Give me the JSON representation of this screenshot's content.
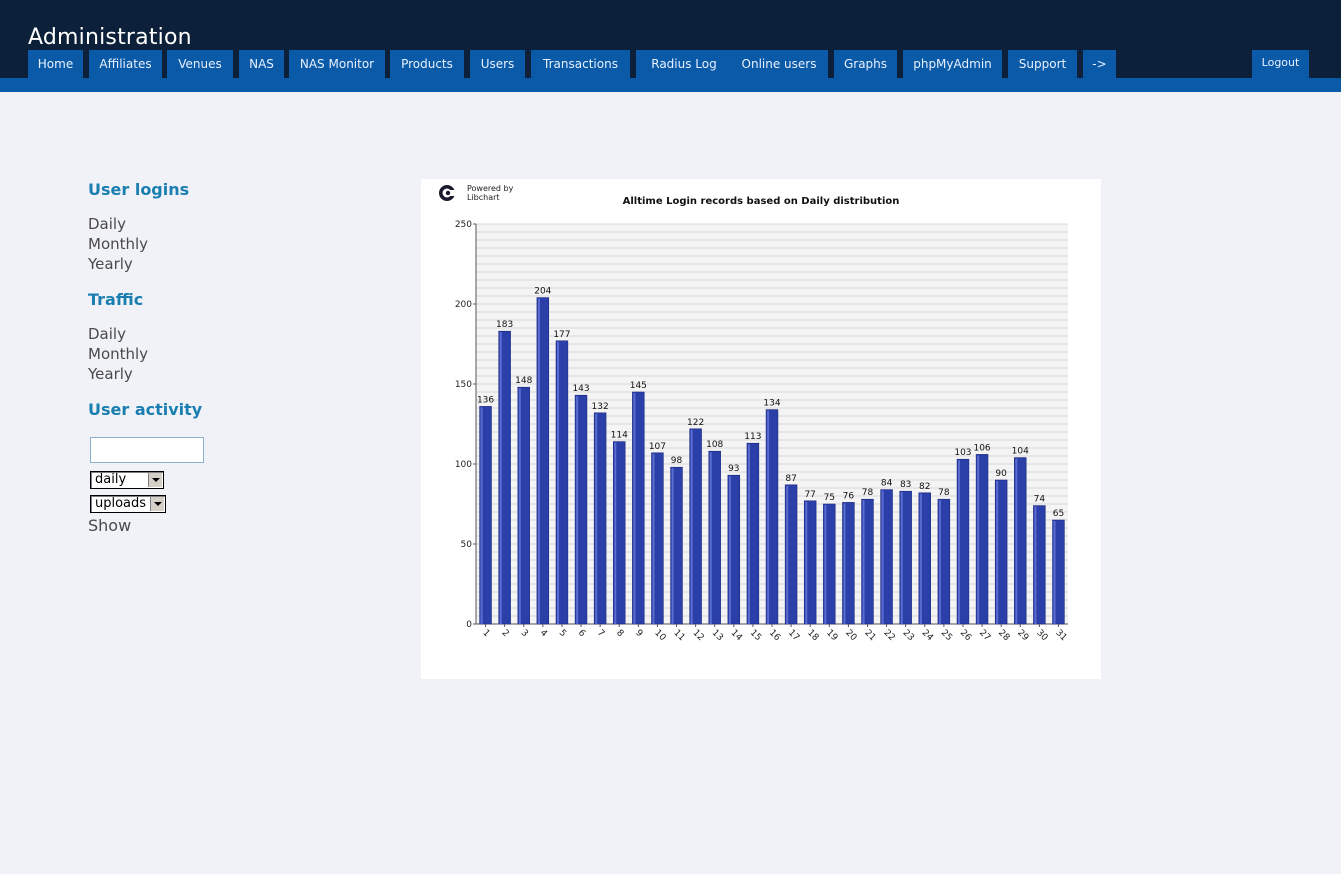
{
  "header": {
    "title": "Administration",
    "tabs": [
      "Home",
      "Affiliates",
      "Venues",
      "NAS",
      "NAS Monitor",
      "Products",
      "Users",
      "Transactions",
      "Radius Log",
      "Online users",
      "Graphs",
      "phpMyAdmin",
      "Support",
      "->"
    ],
    "logout_label": "Logout"
  },
  "sidebar": {
    "user_logins": {
      "title": "User logins",
      "links": [
        "Daily",
        "Monthly",
        "Yearly"
      ]
    },
    "traffic": {
      "title": "Traffic",
      "links": [
        "Daily",
        "Monthly",
        "Yearly"
      ]
    },
    "user_activity": {
      "title": "User activity",
      "username_value": "",
      "period_select": "daily",
      "type_select": "uploads",
      "show_label": "Show"
    }
  },
  "chart_header": {
    "powered_by_line1": "Powered by",
    "powered_by_line2": "Libchart"
  },
  "colors": {
    "header_bg": "#0c2039",
    "tab_bg": "#0a5aa8",
    "section_title": "#1a7fb0",
    "bar": "#2b3fa8"
  },
  "chart_data": {
    "type": "bar",
    "title": "Alltime Login records based on Daily distribution",
    "categories": [
      "1",
      "2",
      "3",
      "4",
      "5",
      "6",
      "7",
      "8",
      "9",
      "10",
      "11",
      "12",
      "13",
      "14",
      "15",
      "16",
      "17",
      "18",
      "19",
      "20",
      "21",
      "22",
      "23",
      "24",
      "25",
      "26",
      "27",
      "28",
      "29",
      "30",
      "31"
    ],
    "values": [
      136,
      183,
      148,
      204,
      177,
      143,
      132,
      114,
      145,
      107,
      98,
      122,
      108,
      93,
      113,
      134,
      87,
      77,
      75,
      76,
      78,
      84,
      83,
      82,
      78,
      103,
      106,
      90,
      104,
      74,
      65
    ],
    "ylim": [
      0,
      250
    ],
    "yticks": [
      0,
      50,
      100,
      150,
      200,
      250
    ],
    "grid": true,
    "legend": "none"
  }
}
